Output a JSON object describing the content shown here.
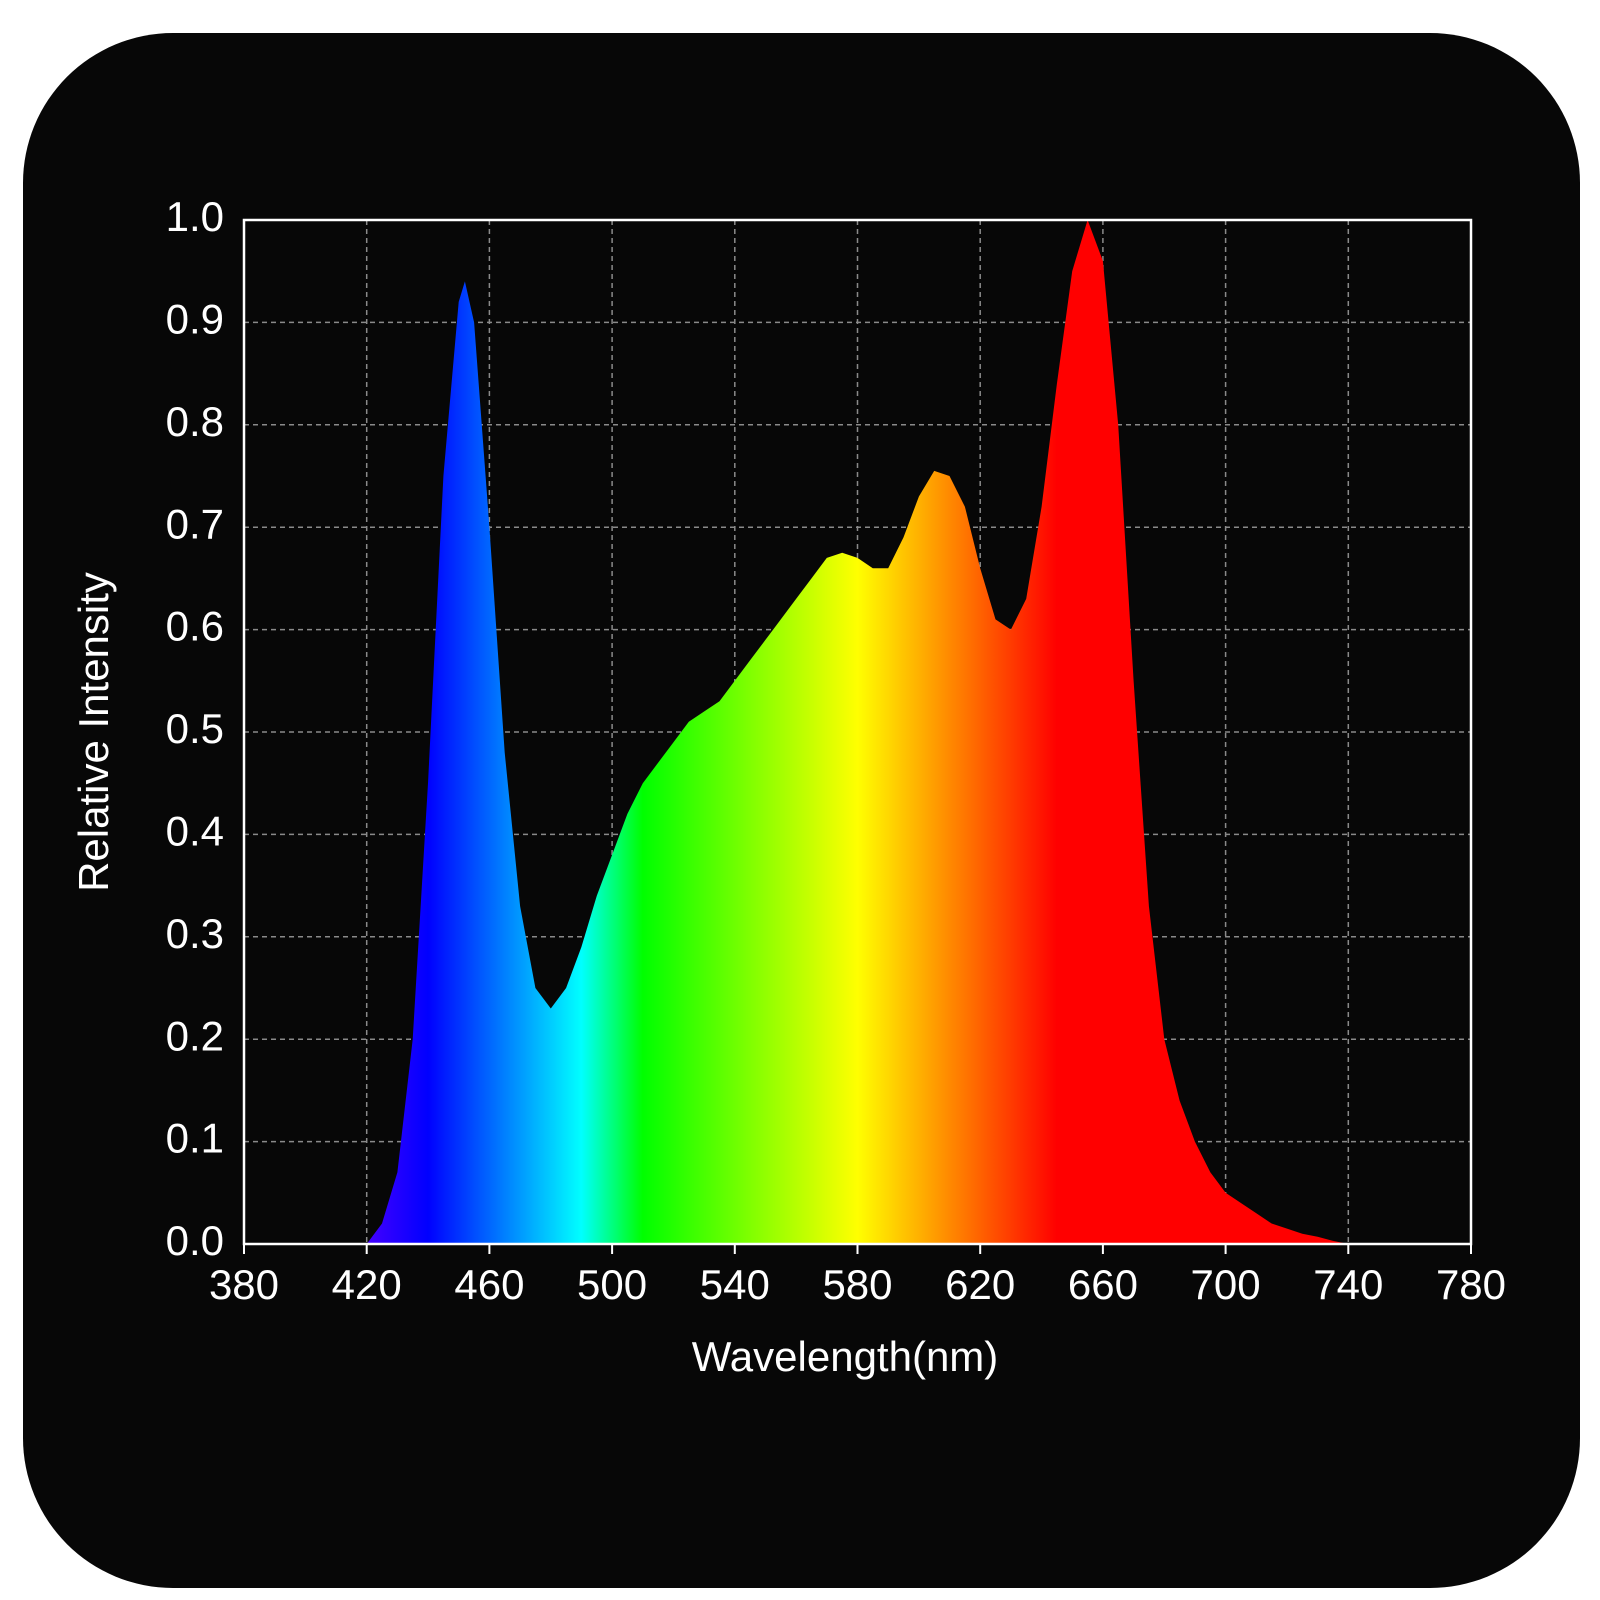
{
  "chart_data": {
    "type": "area",
    "xlabel": "Wavelength(nm)",
    "ylabel": "Relative Intensity",
    "x": [
      420,
      425,
      430,
      435,
      440,
      445,
      450,
      452,
      455,
      460,
      465,
      470,
      475,
      480,
      485,
      490,
      495,
      500,
      505,
      510,
      515,
      520,
      525,
      530,
      535,
      540,
      545,
      550,
      555,
      560,
      565,
      570,
      575,
      580,
      585,
      590,
      595,
      600,
      605,
      610,
      615,
      620,
      625,
      630,
      635,
      640,
      645,
      650,
      655,
      660,
      665,
      670,
      675,
      680,
      685,
      690,
      695,
      700,
      705,
      710,
      715,
      720,
      725,
      730,
      735,
      740
    ],
    "values": [
      0,
      0.02,
      0.07,
      0.2,
      0.45,
      0.75,
      0.92,
      0.94,
      0.9,
      0.7,
      0.48,
      0.33,
      0.25,
      0.23,
      0.25,
      0.29,
      0.34,
      0.38,
      0.42,
      0.45,
      0.47,
      0.49,
      0.51,
      0.52,
      0.53,
      0.55,
      0.57,
      0.59,
      0.61,
      0.63,
      0.65,
      0.67,
      0.675,
      0.67,
      0.66,
      0.66,
      0.69,
      0.73,
      0.755,
      0.75,
      0.72,
      0.66,
      0.61,
      0.6,
      0.63,
      0.72,
      0.84,
      0.95,
      1.0,
      0.96,
      0.8,
      0.55,
      0.33,
      0.2,
      0.14,
      0.1,
      0.07,
      0.05,
      0.04,
      0.03,
      0.02,
      0.015,
      0.01,
      0.007,
      0.003,
      0
    ],
    "xlim": [
      380,
      780
    ],
    "xticks": [
      380,
      420,
      460,
      500,
      540,
      580,
      620,
      660,
      700,
      740,
      780
    ],
    "ylim": [
      0,
      1.0
    ],
    "yticks": [
      {
        "value": 0,
        "label": "0.0"
      },
      {
        "value": 0.1,
        "label": "0.1"
      },
      {
        "value": 0.2,
        "label": "0.2"
      },
      {
        "value": 0.3,
        "label": "0.3"
      },
      {
        "value": 0.4,
        "label": "0.4"
      },
      {
        "value": 0.5,
        "label": "0.5"
      },
      {
        "value": 0.6,
        "label": "0.6"
      },
      {
        "value": 0.7,
        "label": "0.7"
      },
      {
        "value": 0.8,
        "label": "0.8"
      },
      {
        "value": 0.9,
        "label": "0.9"
      },
      {
        "value": 1.0,
        "label": "1.0"
      }
    ],
    "grid": true
  }
}
